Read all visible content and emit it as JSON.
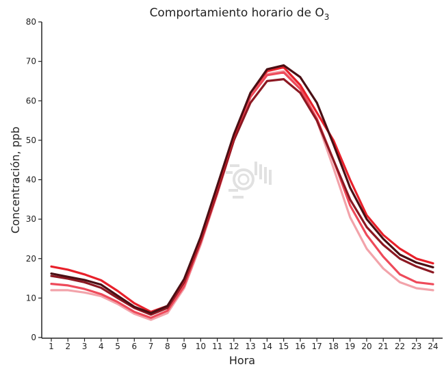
{
  "chart_data": {
    "type": "line",
    "title": "Comportamiento horario de O",
    "title_subscript": "3",
    "xlabel": "Hora",
    "ylabel": "Concentración, ppb",
    "x": [
      1,
      2,
      3,
      4,
      5,
      6,
      7,
      8,
      9,
      10,
      11,
      12,
      13,
      14,
      15,
      16,
      17,
      18,
      19,
      20,
      21,
      22,
      23,
      24
    ],
    "ylim": [
      0,
      80
    ],
    "yticks": [
      0,
      10,
      20,
      30,
      40,
      50,
      60,
      70,
      80
    ],
    "grid": false,
    "legend": "none",
    "series": [
      {
        "color": "#e8202a",
        "values": [
          18,
          17.2,
          16,
          14.5,
          11.8,
          8.7,
          6.5,
          8,
          14.5,
          25,
          38,
          51,
          62,
          67.5,
          68.5,
          64,
          57,
          50,
          40,
          31,
          26,
          22.5,
          20,
          18.8
        ]
      },
      {
        "color": "#4a0f14",
        "values": [
          16.2,
          15.4,
          14.6,
          13.4,
          10.6,
          7.8,
          6.2,
          8,
          14.8,
          25.5,
          38.5,
          51.5,
          62,
          68,
          69,
          66,
          59.5,
          49,
          38,
          30,
          25,
          21,
          19,
          17.8
        ]
      },
      {
        "color": "#8c1822",
        "values": [
          15.6,
          14.9,
          14,
          12.6,
          10,
          7.5,
          5.8,
          7.5,
          14,
          24.5,
          37,
          50,
          59.5,
          65,
          65.5,
          62,
          55,
          45,
          35,
          28,
          23.5,
          20,
          18,
          16.5
        ]
      },
      {
        "color": "#ee4a5a",
        "values": [
          13.6,
          13.2,
          12.3,
          11,
          9,
          6.5,
          5,
          6.8,
          13,
          24,
          36.5,
          50,
          61,
          66.5,
          67.2,
          63,
          55.5,
          45,
          33.5,
          26,
          20.5,
          16,
          14,
          13.5
        ]
      },
      {
        "color": "#f2a3aa",
        "values": [
          12,
          12,
          11.4,
          10.5,
          8.5,
          6,
          4.5,
          6.2,
          12.5,
          23.5,
          36.5,
          50,
          61,
          66.8,
          67.5,
          63.5,
          55,
          43,
          30.5,
          22.5,
          17.5,
          14,
          12.5,
          12
        ]
      }
    ]
  }
}
